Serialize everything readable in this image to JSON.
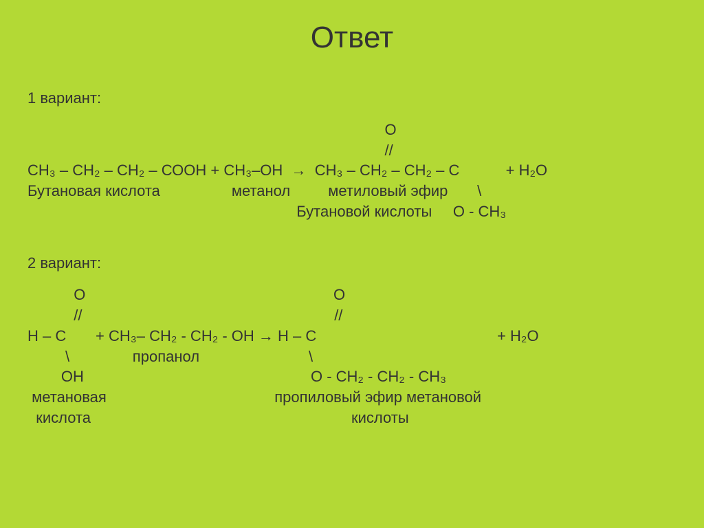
{
  "title": "Ответ",
  "background_color": "#b3d935",
  "text_color": "#333333",
  "title_fontsize": 44,
  "body_fontsize": 22,
  "variant1": {
    "label": "1 вариант:",
    "lines": [
      "                                                                                     O",
      "                                                                                     //",
      "СН₃ – СН₂ – СН₂ – СООН + СН₃–ОН  →  СН₃ – СН₂ – СН₂ – С           + Н₂О",
      "Бутановая кислота                 метанол         метиловый эфир       \\",
      "                                                                Бутановой кислоты     О - СН₃"
    ]
  },
  "variant2": {
    "label": "2 вариант:",
    "lines": [
      "           О                                                           О",
      "           //                                                            //",
      "Н – С       + СН₃– СН₂ - СН₂ - ОН → Н – С                                           + Н₂О",
      "         \\               пропанол                          \\",
      "        ОН                                                      О - СН₂ - СН₂ - СН₃",
      " метановая                                        пропиловый эфир метановой",
      "  кислота                                                              кислоты"
    ]
  }
}
